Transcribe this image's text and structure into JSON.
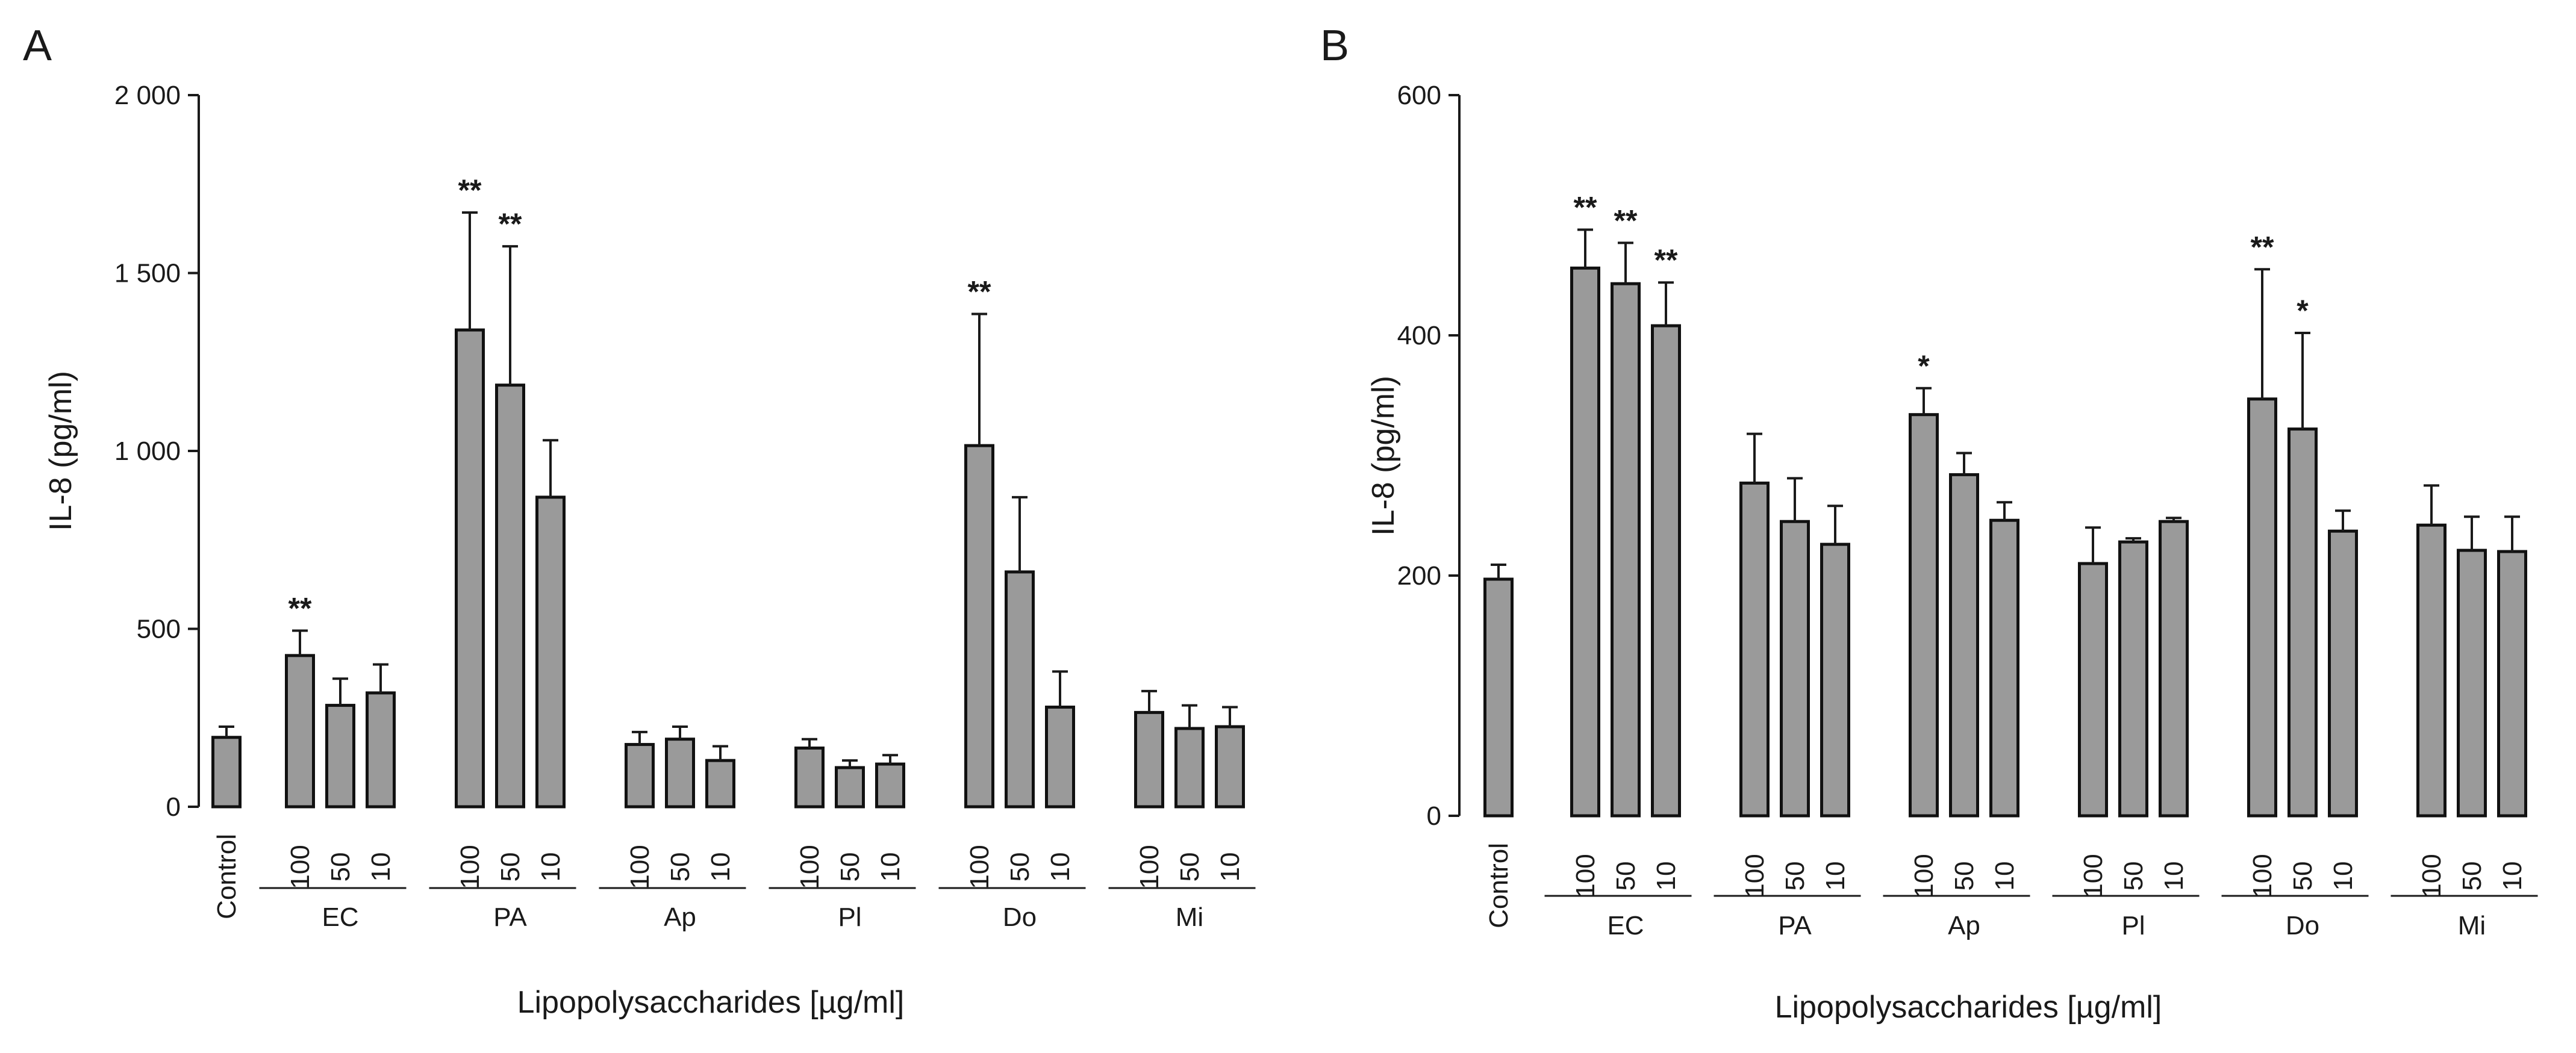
{
  "style": {
    "bar_fill": "#9a9a9a",
    "bar_edge": "#111111",
    "text_color": "#1a1a1a"
  },
  "chart_data": [
    {
      "panel": "A",
      "type": "bar",
      "ylabel": "IL-8 (pg/ml)",
      "xlabel": "Lipopolysaccharides [µg/ml]",
      "ylim": [
        0,
        2000
      ],
      "yticks": [
        0,
        500,
        1000,
        1500,
        2000
      ],
      "ytick_labels": [
        "0",
        "500",
        "1 000",
        "1 500",
        "2 000"
      ],
      "control": {
        "label": "Control",
        "value": 195,
        "error": 30
      },
      "groups": [
        {
          "name": "EC",
          "bars": [
            {
              "dose": "100",
              "value": 425,
              "error": 70,
              "sig": "**"
            },
            {
              "dose": "50",
              "value": 285,
              "error": 75,
              "sig": ""
            },
            {
              "dose": "10",
              "value": 320,
              "error": 80,
              "sig": ""
            }
          ]
        },
        {
          "name": "PA",
          "bars": [
            {
              "dose": "100",
              "value": 1340,
              "error": 330,
              "sig": "**"
            },
            {
              "dose": "50",
              "value": 1185,
              "error": 390,
              "sig": "**"
            },
            {
              "dose": "10",
              "value": 870,
              "error": 160,
              "sig": ""
            }
          ]
        },
        {
          "name": "Ap",
          "bars": [
            {
              "dose": "100",
              "value": 175,
              "error": 35,
              "sig": ""
            },
            {
              "dose": "50",
              "value": 190,
              "error": 35,
              "sig": ""
            },
            {
              "dose": "10",
              "value": 130,
              "error": 40,
              "sig": ""
            }
          ]
        },
        {
          "name": "Pl",
          "bars": [
            {
              "dose": "100",
              "value": 165,
              "error": 25,
              "sig": ""
            },
            {
              "dose": "50",
              "value": 110,
              "error": 20,
              "sig": ""
            },
            {
              "dose": "10",
              "value": 120,
              "error": 25,
              "sig": ""
            }
          ]
        },
        {
          "name": "Do",
          "bars": [
            {
              "dose": "100",
              "value": 1015,
              "error": 370,
              "sig": "**"
            },
            {
              "dose": "50",
              "value": 660,
              "error": 210,
              "sig": ""
            },
            {
              "dose": "10",
              "value": 280,
              "error": 100,
              "sig": ""
            }
          ]
        },
        {
          "name": "Mi",
          "bars": [
            {
              "dose": "100",
              "value": 265,
              "error": 60,
              "sig": ""
            },
            {
              "dose": "50",
              "value": 220,
              "error": 65,
              "sig": ""
            },
            {
              "dose": "10",
              "value": 225,
              "error": 55,
              "sig": ""
            }
          ]
        }
      ]
    },
    {
      "panel": "B",
      "type": "bar",
      "ylabel": "IL-8 (pg/ml)",
      "xlabel": "Lipopolysaccharides [µg/ml]",
      "ylim": [
        0,
        600
      ],
      "yticks": [
        0,
        200,
        400,
        600
      ],
      "ytick_labels": [
        "0",
        "200",
        "400",
        "600"
      ],
      "control": {
        "label": "Control",
        "value": 197,
        "error": 12
      },
      "groups": [
        {
          "name": "EC",
          "bars": [
            {
              "dose": "100",
              "value": 456,
              "error": 32,
              "sig": "**"
            },
            {
              "dose": "50",
              "value": 443,
              "error": 34,
              "sig": "**"
            },
            {
              "dose": "10",
              "value": 408,
              "error": 36,
              "sig": "**"
            }
          ]
        },
        {
          "name": "PA",
          "bars": [
            {
              "dose": "100",
              "value": 277,
              "error": 41,
              "sig": ""
            },
            {
              "dose": "50",
              "value": 245,
              "error": 36,
              "sig": ""
            },
            {
              "dose": "10",
              "value": 226,
              "error": 32,
              "sig": ""
            }
          ]
        },
        {
          "name": "Ap",
          "bars": [
            {
              "dose": "100",
              "value": 334,
              "error": 22,
              "sig": "*"
            },
            {
              "dose": "50",
              "value": 284,
              "error": 18,
              "sig": ""
            },
            {
              "dose": "10",
              "value": 246,
              "error": 15,
              "sig": ""
            }
          ]
        },
        {
          "name": "Pl",
          "bars": [
            {
              "dose": "100",
              "value": 210,
              "error": 30,
              "sig": ""
            },
            {
              "dose": "50",
              "value": 228,
              "error": 3,
              "sig": ""
            },
            {
              "dose": "10",
              "value": 245,
              "error": 3,
              "sig": ""
            }
          ]
        },
        {
          "name": "Do",
          "bars": [
            {
              "dose": "100",
              "value": 347,
              "error": 108,
              "sig": "**"
            },
            {
              "dose": "50",
              "value": 322,
              "error": 80,
              "sig": "*"
            },
            {
              "dose": "10",
              "value": 237,
              "error": 17,
              "sig": ""
            }
          ]
        },
        {
          "name": "Mi",
          "bars": [
            {
              "dose": "100",
              "value": 242,
              "error": 33,
              "sig": ""
            },
            {
              "dose": "50",
              "value": 221,
              "error": 28,
              "sig": ""
            },
            {
              "dose": "10",
              "value": 220,
              "error": 29,
              "sig": ""
            }
          ]
        }
      ]
    }
  ]
}
